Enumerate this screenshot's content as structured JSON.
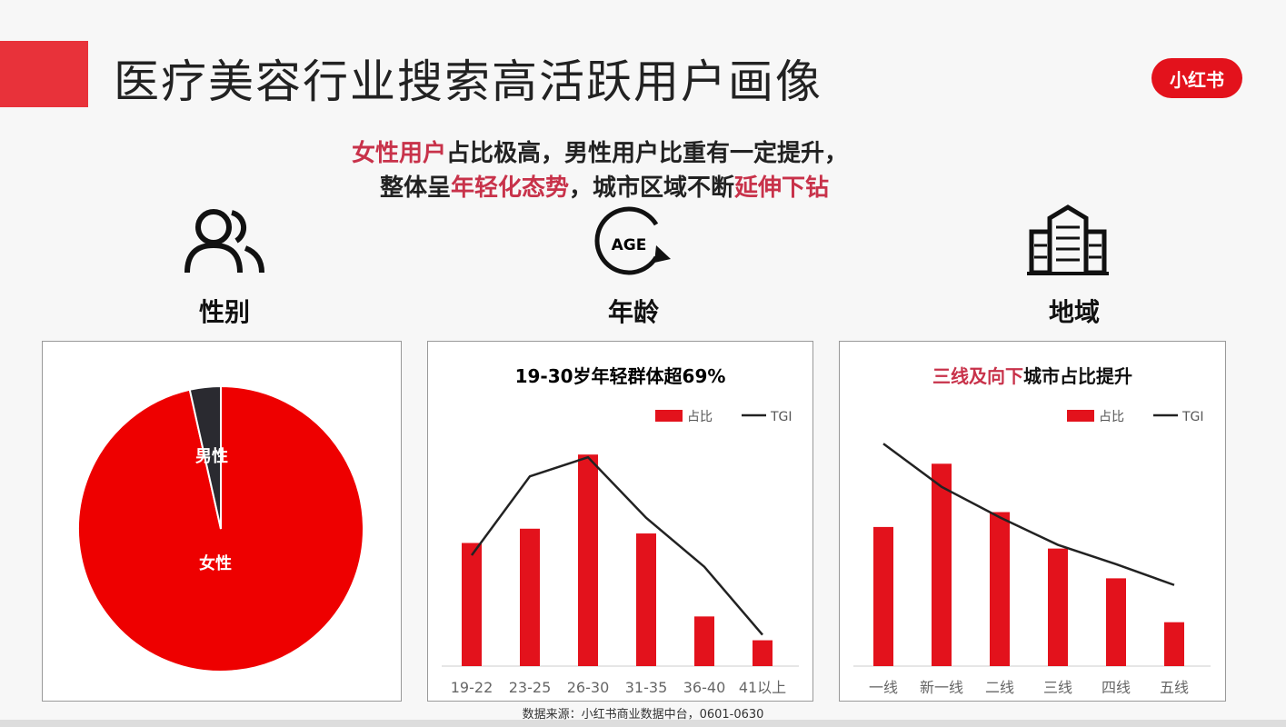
{
  "title": "医疗美容行业搜索高活跃用户画像",
  "logo": "小红书",
  "subtitle": {
    "line1": [
      {
        "t": "女性用户",
        "hl": true
      },
      {
        "t": "占比极高，男性用户比重有一定提升，",
        "hl": false
      }
    ],
    "line2": [
      {
        "t": "整体呈",
        "hl": false
      },
      {
        "t": "年轻化态势",
        "hl": true
      },
      {
        "t": "，城市区域不断",
        "hl": false
      },
      {
        "t": "延伸下钻",
        "hl": true
      }
    ]
  },
  "sections": [
    {
      "label": "性别",
      "icon": "users-icon"
    },
    {
      "label": "年龄",
      "icon": "age-icon",
      "icon_text": "AGE"
    },
    {
      "label": "地域",
      "icon": "building-icon"
    }
  ],
  "colors": {
    "accent": "#e3121c",
    "line": "#222222",
    "highlight": "#c8324a"
  },
  "chart_data": [
    {
      "type": "pie",
      "slices": [
        {
          "name": "女性",
          "value": 96.5,
          "color": "#ee0000"
        },
        {
          "name": "男性",
          "value": 3.5,
          "color": "#2a2a30"
        }
      ]
    },
    {
      "type": "bar",
      "title": "19-30岁年轻群体超69%",
      "legend": [
        "占比",
        "TGI"
      ],
      "legend_position": "top-right",
      "categories": [
        "19-22",
        "23-25",
        "26-30",
        "31-35",
        "36-40",
        "41以上"
      ],
      "series": [
        {
          "name": "占比",
          "type": "bar",
          "values": [
            18.1,
            20.2,
            31.1,
            19.5,
            7.3,
            3.8
          ]
        },
        {
          "name": "TGI",
          "type": "line",
          "values": [
            16.3,
            27.9,
            30.7,
            21.8,
            14.6,
            4.6
          ]
        }
      ],
      "ylim": [
        0,
        35
      ]
    },
    {
      "type": "bar",
      "title": [
        {
          "t": "三线及向下",
          "hl": true
        },
        {
          "t": "城市占比提升",
          "hl": false
        }
      ],
      "legend": [
        "占比",
        "TGI"
      ],
      "legend_position": "top-right",
      "categories": [
        "一线",
        "新一线",
        "二线",
        "三线",
        "四线",
        "五线"
      ],
      "series": [
        {
          "name": "占比",
          "type": "bar",
          "values": [
            18.7,
            27.2,
            20.7,
            15.8,
            11.8,
            5.9
          ]
        },
        {
          "name": "TGI",
          "type": "line",
          "values": [
            29.9,
            24.1,
            20.0,
            16.3,
            13.7,
            10.9
          ]
        }
      ],
      "ylim": [
        0,
        32
      ]
    }
  ],
  "footer": "数据来源：小红书商业数据中台，0601-0630"
}
